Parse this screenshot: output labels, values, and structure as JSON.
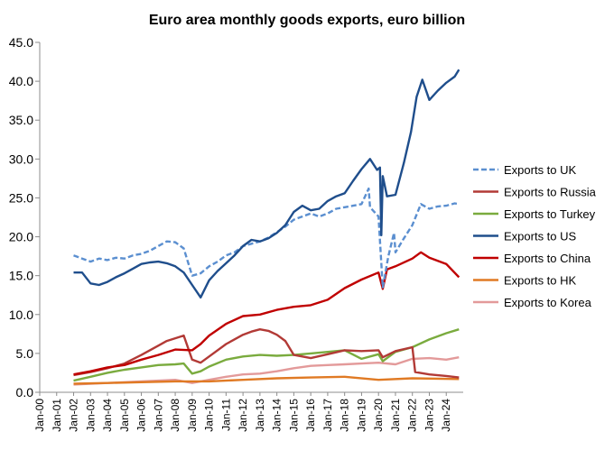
{
  "chart_data": {
    "type": "line",
    "title": "Euro area monthly goods exports, euro billion",
    "xlabel": "",
    "ylabel": "",
    "ylim": [
      0,
      45
    ],
    "y_ticks": [
      "0.0",
      "5.0",
      "10.0",
      "15.0",
      "20.0",
      "25.0",
      "30.0",
      "35.0",
      "40.0",
      "45.0"
    ],
    "x_ticks": [
      "Jan-00",
      "Jan-01",
      "Jan-02",
      "Jan-03",
      "Jan-04",
      "Jan-05",
      "Jan-06",
      "Jan-07",
      "Jan-08",
      "Jan-09",
      "Jan-10",
      "Jan-11",
      "Jan-12",
      "Jan-13",
      "Jan-14",
      "Jan-15",
      "Jan-16",
      "Jan-17",
      "Jan-18",
      "Jan-19",
      "Jan-20",
      "Jan-21",
      "Jan-22",
      "Jan-23",
      "Jan-24"
    ],
    "grid": "none",
    "legend": "right",
    "series": [
      {
        "name": "Exports to UK",
        "color": "#5b8fd0",
        "dash": true,
        "points": [
          [
            "Jan-02",
            17.6
          ],
          [
            "Jul-02",
            17.2
          ],
          [
            "Jan-03",
            16.8
          ],
          [
            "Jul-03",
            17.2
          ],
          [
            "Jan-04",
            17.0
          ],
          [
            "Jul-04",
            17.3
          ],
          [
            "Jan-05",
            17.2
          ],
          [
            "Jul-05",
            17.6
          ],
          [
            "Jan-06",
            17.8
          ],
          [
            "Jul-06",
            18.2
          ],
          [
            "Jan-07",
            18.8
          ],
          [
            "Jul-07",
            19.4
          ],
          [
            "Jan-08",
            19.3
          ],
          [
            "Jul-08",
            18.5
          ],
          [
            "Jan-09",
            15.0
          ],
          [
            "Jul-09",
            15.3
          ],
          [
            "Jan-10",
            16.2
          ],
          [
            "Jul-10",
            16.8
          ],
          [
            "Jan-11",
            17.6
          ],
          [
            "Jul-11",
            18.0
          ],
          [
            "Jan-12",
            18.8
          ],
          [
            "Jul-12",
            19.1
          ],
          [
            "Jan-13",
            19.4
          ],
          [
            "Jul-13",
            19.9
          ],
          [
            "Jan-14",
            20.6
          ],
          [
            "Jul-14",
            21.3
          ],
          [
            "Jan-15",
            22.2
          ],
          [
            "Jul-15",
            22.6
          ],
          [
            "Jan-16",
            23.0
          ],
          [
            "Jul-16",
            22.6
          ],
          [
            "Jan-17",
            23.0
          ],
          [
            "Jul-17",
            23.6
          ],
          [
            "Jan-18",
            23.8
          ],
          [
            "Jul-18",
            24.0
          ],
          [
            "Jan-19",
            24.2
          ],
          [
            "Jun-19",
            26.2
          ],
          [
            "Jul-19",
            23.8
          ],
          [
            "Jan-20",
            22.6
          ],
          [
            "Apr-20",
            13.5
          ],
          [
            "Aug-20",
            17.5
          ],
          [
            "Dec-20",
            20.5
          ],
          [
            "Jan-21",
            18.0
          ],
          [
            "Jul-21",
            19.8
          ],
          [
            "Jan-22",
            21.5
          ],
          [
            "Jul-22",
            24.2
          ],
          [
            "Jan-23",
            23.6
          ],
          [
            "Jul-23",
            23.9
          ],
          [
            "Jan-24",
            24.0
          ],
          [
            "Jul-24",
            24.3
          ],
          [
            "Oct-24",
            24.2
          ]
        ]
      },
      {
        "name": "Exports to Russia",
        "color": "#b23a36",
        "dash": false,
        "points": [
          [
            "Jan-02",
            2.2
          ],
          [
            "Jan-03",
            2.6
          ],
          [
            "Jan-04",
            3.1
          ],
          [
            "Jan-05",
            3.7
          ],
          [
            "Jan-06",
            4.8
          ],
          [
            "Jan-07",
            6.0
          ],
          [
            "Jul-07",
            6.6
          ],
          [
            "Jul-08",
            7.3
          ],
          [
            "Jan-09",
            4.2
          ],
          [
            "Jul-09",
            3.8
          ],
          [
            "Jan-10",
            4.6
          ],
          [
            "Jan-11",
            6.2
          ],
          [
            "Jan-12",
            7.4
          ],
          [
            "Jul-12",
            7.8
          ],
          [
            "Jan-13",
            8.1
          ],
          [
            "Jul-13",
            7.9
          ],
          [
            "Jan-14",
            7.4
          ],
          [
            "Jul-14",
            6.6
          ],
          [
            "Jan-15",
            4.8
          ],
          [
            "Jan-16",
            4.4
          ],
          [
            "Jan-17",
            4.9
          ],
          [
            "Jan-18",
            5.4
          ],
          [
            "Jan-19",
            5.3
          ],
          [
            "Jan-20",
            5.4
          ],
          [
            "Apr-20",
            4.5
          ],
          [
            "Jan-21",
            5.3
          ],
          [
            "Jan-22",
            5.8
          ],
          [
            "Mar-22",
            2.6
          ],
          [
            "Jan-23",
            2.3
          ],
          [
            "Jan-24",
            2.1
          ],
          [
            "Oct-24",
            1.9
          ]
        ]
      },
      {
        "name": "Exports to Turkey",
        "color": "#7aab3e",
        "dash": false,
        "points": [
          [
            "Jan-02",
            1.5
          ],
          [
            "Jan-03",
            2.0
          ],
          [
            "Jan-04",
            2.5
          ],
          [
            "Jan-05",
            2.9
          ],
          [
            "Jan-06",
            3.2
          ],
          [
            "Jan-07",
            3.5
          ],
          [
            "Jan-08",
            3.6
          ],
          [
            "Jul-08",
            3.7
          ],
          [
            "Jan-09",
            2.4
          ],
          [
            "Jul-09",
            2.7
          ],
          [
            "Jan-10",
            3.3
          ],
          [
            "Jan-11",
            4.2
          ],
          [
            "Jan-12",
            4.6
          ],
          [
            "Jan-13",
            4.8
          ],
          [
            "Jan-14",
            4.7
          ],
          [
            "Jan-15",
            4.8
          ],
          [
            "Jan-16",
            5.0
          ],
          [
            "Jan-17",
            5.2
          ],
          [
            "Jan-18",
            5.4
          ],
          [
            "Jan-19",
            4.3
          ],
          [
            "Jan-20",
            4.9
          ],
          [
            "Apr-20",
            4.0
          ],
          [
            "Jan-21",
            5.2
          ],
          [
            "Jan-22",
            5.8
          ],
          [
            "Jan-23",
            6.8
          ],
          [
            "Jan-24",
            7.6
          ],
          [
            "Oct-24",
            8.1
          ]
        ]
      },
      {
        "name": "Exports to US",
        "color": "#1f4e8c",
        "dash": false,
        "points": [
          [
            "Jan-02",
            15.4
          ],
          [
            "Jul-02",
            15.4
          ],
          [
            "Jan-03",
            14.0
          ],
          [
            "Jul-03",
            13.8
          ],
          [
            "Jan-04",
            14.2
          ],
          [
            "Jul-04",
            14.8
          ],
          [
            "Jan-05",
            15.3
          ],
          [
            "Jul-05",
            15.9
          ],
          [
            "Jan-06",
            16.5
          ],
          [
            "Jul-06",
            16.7
          ],
          [
            "Jan-07",
            16.8
          ],
          [
            "Jul-07",
            16.6
          ],
          [
            "Jan-08",
            16.2
          ],
          [
            "Jul-08",
            15.4
          ],
          [
            "Jan-09",
            13.8
          ],
          [
            "Jul-09",
            12.2
          ],
          [
            "Jan-10",
            14.4
          ],
          [
            "Jul-10",
            15.6
          ],
          [
            "Jan-11",
            16.6
          ],
          [
            "Jul-11",
            17.6
          ],
          [
            "Jan-12",
            18.8
          ],
          [
            "Jul-12",
            19.6
          ],
          [
            "Jan-13",
            19.4
          ],
          [
            "Jul-13",
            19.8
          ],
          [
            "Jan-14",
            20.5
          ],
          [
            "Jul-14",
            21.5
          ],
          [
            "Jan-15",
            23.2
          ],
          [
            "Jul-15",
            24.0
          ],
          [
            "Jan-16",
            23.4
          ],
          [
            "Jul-16",
            23.6
          ],
          [
            "Jan-17",
            24.6
          ],
          [
            "Jul-17",
            25.2
          ],
          [
            "Jan-18",
            25.6
          ],
          [
            "Jul-18",
            27.2
          ],
          [
            "Jan-19",
            28.7
          ],
          [
            "Jul-19",
            30.0
          ],
          [
            "Dec-19",
            28.6
          ],
          [
            "Feb-20",
            28.9
          ],
          [
            "Mar-20",
            20.2
          ],
          [
            "Apr-20",
            27.8
          ],
          [
            "Jul-20",
            25.2
          ],
          [
            "Jan-21",
            25.4
          ],
          [
            "Jul-21",
            29.5
          ],
          [
            "Dec-21",
            33.5
          ],
          [
            "Apr-22",
            38.0
          ],
          [
            "Aug-22",
            40.2
          ],
          [
            "Jan-23",
            37.6
          ],
          [
            "Jul-23",
            38.8
          ],
          [
            "Jan-24",
            39.8
          ],
          [
            "Jul-24",
            40.6
          ],
          [
            "Oct-24",
            41.5
          ]
        ]
      },
      {
        "name": "Exports to China",
        "color": "#c00000",
        "dash": false,
        "points": [
          [
            "Jan-02",
            2.3
          ],
          [
            "Jan-03",
            2.7
          ],
          [
            "Jan-04",
            3.2
          ],
          [
            "Jan-05",
            3.5
          ],
          [
            "Jan-06",
            4.2
          ],
          [
            "Jan-07",
            4.8
          ],
          [
            "Jan-08",
            5.5
          ],
          [
            "Jan-09",
            5.4
          ],
          [
            "Jul-09",
            6.2
          ],
          [
            "Jan-10",
            7.3
          ],
          [
            "Jan-11",
            8.8
          ],
          [
            "Jan-12",
            9.8
          ],
          [
            "Jan-13",
            10.0
          ],
          [
            "Jan-14",
            10.6
          ],
          [
            "Jan-15",
            11.0
          ],
          [
            "Jan-16",
            11.2
          ],
          [
            "Jan-17",
            11.9
          ],
          [
            "Jan-18",
            13.4
          ],
          [
            "Jan-19",
            14.5
          ],
          [
            "Jan-20",
            15.4
          ],
          [
            "Apr-20",
            13.3
          ],
          [
            "Jul-20",
            15.8
          ],
          [
            "Jan-21",
            16.2
          ],
          [
            "Jan-22",
            17.2
          ],
          [
            "Jul-22",
            18.0
          ],
          [
            "Jan-23",
            17.3
          ],
          [
            "Jan-24",
            16.5
          ],
          [
            "Oct-24",
            14.8
          ]
        ]
      },
      {
        "name": "Exports to HK",
        "color": "#e07a24",
        "dash": false,
        "points": [
          [
            "Jan-02",
            1.1
          ],
          [
            "Jan-04",
            1.2
          ],
          [
            "Jan-06",
            1.3
          ],
          [
            "Jan-08",
            1.4
          ],
          [
            "Jan-10",
            1.4
          ],
          [
            "Jan-12",
            1.6
          ],
          [
            "Jan-14",
            1.8
          ],
          [
            "Jan-16",
            1.9
          ],
          [
            "Jan-18",
            2.0
          ],
          [
            "Jan-20",
            1.6
          ],
          [
            "Jan-22",
            1.8
          ],
          [
            "Oct-24",
            1.7
          ]
        ]
      },
      {
        "name": "Exports to Korea",
        "color": "#e39a9a",
        "dash": false,
        "points": [
          [
            "Jan-02",
            1.0
          ],
          [
            "Jan-04",
            1.2
          ],
          [
            "Jan-06",
            1.4
          ],
          [
            "Jan-08",
            1.6
          ],
          [
            "Jan-09",
            1.2
          ],
          [
            "Jan-10",
            1.6
          ],
          [
            "Jan-11",
            2.0
          ],
          [
            "Jan-12",
            2.3
          ],
          [
            "Jan-13",
            2.4
          ],
          [
            "Jan-14",
            2.7
          ],
          [
            "Jan-15",
            3.1
          ],
          [
            "Jan-16",
            3.4
          ],
          [
            "Jan-17",
            3.5
          ],
          [
            "Jan-18",
            3.6
          ],
          [
            "Jan-19",
            3.7
          ],
          [
            "Jan-20",
            3.8
          ],
          [
            "Jan-21",
            3.6
          ],
          [
            "Jan-22",
            4.3
          ],
          [
            "Jan-23",
            4.4
          ],
          [
            "Jan-24",
            4.2
          ],
          [
            "Oct-24",
            4.5
          ]
        ]
      }
    ]
  }
}
